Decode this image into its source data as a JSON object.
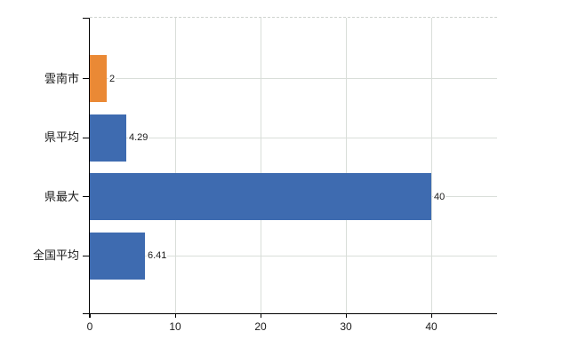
{
  "chart_data": {
    "type": "bar",
    "orientation": "horizontal",
    "categories": [
      "雲南市",
      "県平均",
      "県最大",
      "全国平均"
    ],
    "values": [
      2,
      4.29,
      40,
      6.41
    ],
    "value_labels": [
      "2",
      "4.29",
      "40",
      "6.41"
    ],
    "bar_colors": [
      "#EA8935",
      "#3E6BB0",
      "#3E6BB0",
      "#3E6BB0"
    ],
    "series": [
      {
        "name": "値",
        "values": [
          2,
          4.29,
          40,
          6.41
        ]
      }
    ],
    "x_ticks": [
      0,
      10,
      20,
      30,
      40
    ],
    "x_tick_labels": [
      "0",
      "10",
      "20",
      "30",
      "40"
    ],
    "xlim": [
      0,
      47.7
    ],
    "grid": true,
    "legend": "none",
    "title": ""
  },
  "colors": {
    "bar_orange": "#EA8935",
    "bar_blue": "#3E6BB0",
    "gridline": "#d9ded9",
    "axis": "#000000",
    "text": "#1a1a1a",
    "background": "#ffffff"
  }
}
